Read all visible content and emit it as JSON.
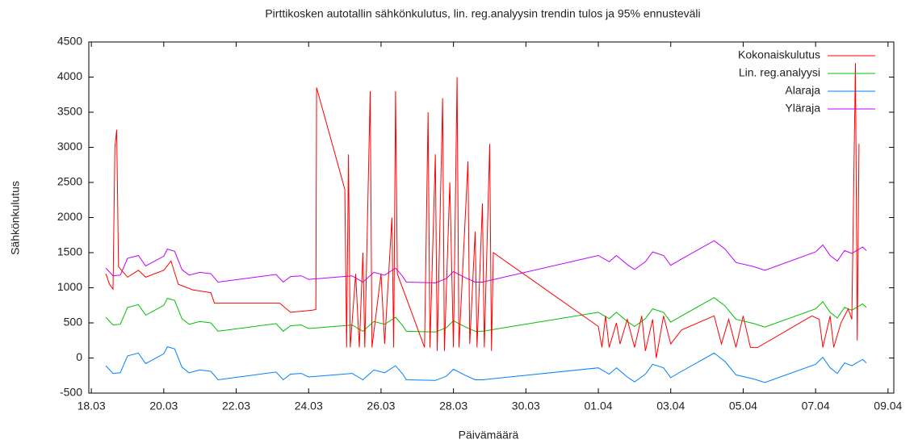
{
  "chart_data": {
    "type": "line",
    "title": "Pirttikosken autotallin sähkönkulutus, lin. reg.analyysin trendin tulos ja 95% ennusteväli",
    "x_label": "Päivämäärä",
    "y_label": "Sähkönkulutus",
    "xlim": [
      17.93,
      40.16
    ],
    "ylim": [
      -500,
      4500
    ],
    "xticks": [
      {
        "value": 18,
        "label": "18.03"
      },
      {
        "value": 20,
        "label": "20.03"
      },
      {
        "value": 22,
        "label": "22.03"
      },
      {
        "value": 24,
        "label": "24.03"
      },
      {
        "value": 26,
        "label": "26.03"
      },
      {
        "value": 28,
        "label": "28.03"
      },
      {
        "value": 30,
        "label": "30.03"
      },
      {
        "value": 32,
        "label": "01.04"
      },
      {
        "value": 34,
        "label": "03.04"
      },
      {
        "value": 36,
        "label": "05.04"
      },
      {
        "value": 38,
        "label": "07.04"
      },
      {
        "value": 40,
        "label": "09.04"
      }
    ],
    "yticks": [
      -500,
      0,
      500,
      1000,
      1500,
      2000,
      2500,
      3000,
      3500,
      4000,
      4500
    ],
    "legend": "top-right",
    "series": [
      {
        "name": "Kokonaiskulutus",
        "color": "#ff0000",
        "x": [
          18.4,
          18.5,
          18.6,
          18.65,
          18.7,
          18.75,
          19.0,
          19.3,
          19.5,
          20.0,
          20.2,
          20.4,
          20.8,
          21.3,
          21.4,
          23.2,
          23.5,
          24.1,
          24.2,
          24.22,
          25.0,
          25.05,
          25.1,
          25.15,
          25.3,
          25.4,
          25.5,
          25.55,
          25.7,
          25.75,
          26.0,
          26.1,
          26.3,
          26.35,
          26.4,
          26.45,
          27.2,
          27.3,
          27.35,
          27.5,
          27.55,
          27.7,
          27.75,
          27.9,
          28.0,
          28.1,
          28.15,
          28.4,
          28.45,
          28.6,
          28.65,
          28.8,
          28.85,
          29.0,
          29.05,
          29.1,
          32.0,
          32.1,
          32.2,
          32.3,
          32.5,
          32.6,
          32.8,
          33.0,
          33.2,
          33.3,
          33.5,
          33.6,
          33.8,
          34.0,
          34.3,
          35.2,
          35.4,
          35.6,
          35.8,
          36.0,
          36.2,
          36.4,
          37.9,
          38.1,
          38.2,
          38.4,
          38.5,
          38.7,
          38.9,
          39.0,
          39.1,
          39.15,
          39.2
        ],
        "values": [
          1200,
          1050,
          980,
          3000,
          3250,
          1300,
          1150,
          1250,
          1150,
          1250,
          1380,
          1050,
          970,
          930,
          780,
          780,
          650,
          680,
          690,
          3850,
          2400,
          150,
          2900,
          150,
          1200,
          150,
          1500,
          150,
          3800,
          150,
          1200,
          200,
          2000,
          150,
          3800,
          1200,
          150,
          3500,
          150,
          2900,
          100,
          3700,
          100,
          2500,
          150,
          4000,
          150,
          2800,
          200,
          1800,
          150,
          2200,
          150,
          3050,
          100,
          1500,
          450,
          150,
          600,
          150,
          500,
          200,
          550,
          150,
          600,
          100,
          550,
          0,
          600,
          200,
          400,
          600,
          200,
          550,
          150,
          600,
          150,
          150,
          600,
          550,
          150,
          600,
          150,
          500,
          700,
          550,
          4200,
          250,
          3050
        ]
      },
      {
        "name": "Lin. reg.analyysi",
        "color": "#00c000",
        "x": [
          18.4,
          18.6,
          18.8,
          19.0,
          19.3,
          19.5,
          20.0,
          20.1,
          20.3,
          20.5,
          20.7,
          21.0,
          21.3,
          21.5,
          23.1,
          23.3,
          23.5,
          23.8,
          24.0,
          25.2,
          25.5,
          25.8,
          26.1,
          26.4,
          26.6,
          26.7,
          27.5,
          27.8,
          28.0,
          28.3,
          28.6,
          28.8,
          32.0,
          32.3,
          32.5,
          32.8,
          33.0,
          33.3,
          33.5,
          33.8,
          34.0,
          34.3,
          35.2,
          35.5,
          35.8,
          36.3,
          36.6,
          38.0,
          38.2,
          38.4,
          38.6,
          38.8,
          39.0,
          39.3,
          39.4
        ],
        "values": [
          580,
          470,
          480,
          720,
          760,
          610,
          750,
          850,
          820,
          560,
          480,
          520,
          500,
          380,
          490,
          380,
          460,
          470,
          420,
          470,
          380,
          520,
          480,
          580,
          460,
          380,
          370,
          430,
          530,
          450,
          380,
          380,
          650,
          560,
          650,
          520,
          450,
          560,
          700,
          650,
          510,
          600,
          860,
          740,
          550,
          490,
          440,
          700,
          800,
          650,
          570,
          720,
          680,
          770,
          720
        ]
      },
      {
        "name": "Alaraja",
        "color": "#0080ff",
        "x": [
          18.4,
          18.6,
          18.8,
          19.0,
          19.3,
          19.5,
          20.0,
          20.1,
          20.3,
          20.5,
          20.7,
          21.0,
          21.3,
          21.5,
          23.1,
          23.3,
          23.5,
          23.8,
          24.0,
          25.2,
          25.5,
          25.8,
          26.1,
          26.4,
          26.6,
          26.7,
          27.5,
          27.8,
          28.0,
          28.3,
          28.6,
          28.8,
          32.0,
          32.3,
          32.5,
          32.8,
          33.0,
          33.3,
          33.5,
          33.8,
          34.0,
          34.3,
          35.2,
          35.5,
          35.8,
          36.3,
          36.6,
          38.0,
          38.2,
          38.4,
          38.6,
          38.8,
          39.0,
          39.3,
          39.4
        ],
        "values": [
          -110,
          -220,
          -210,
          30,
          70,
          -80,
          60,
          160,
          130,
          -130,
          -210,
          -170,
          -190,
          -310,
          -200,
          -310,
          -230,
          -220,
          -270,
          -220,
          -310,
          -170,
          -210,
          -110,
          -230,
          -310,
          -320,
          -260,
          -160,
          -240,
          -310,
          -310,
          -140,
          -230,
          -140,
          -270,
          -340,
          -230,
          -90,
          -140,
          -280,
          -190,
          70,
          -50,
          -240,
          -300,
          -350,
          -90,
          10,
          -140,
          -220,
          -70,
          -110,
          -20,
          -70
        ]
      },
      {
        "name": "Yläraja",
        "color": "#c000ff",
        "x": [
          18.4,
          18.6,
          18.8,
          19.0,
          19.3,
          19.5,
          20.0,
          20.1,
          20.3,
          20.5,
          20.7,
          21.0,
          21.3,
          21.5,
          23.1,
          23.3,
          23.5,
          23.8,
          24.0,
          25.2,
          25.5,
          25.8,
          26.1,
          26.4,
          26.6,
          26.7,
          27.5,
          27.8,
          28.0,
          28.3,
          28.6,
          28.8,
          32.0,
          32.3,
          32.5,
          32.8,
          33.0,
          33.3,
          33.5,
          33.8,
          34.0,
          34.3,
          35.2,
          35.5,
          35.8,
          36.3,
          36.6,
          38.0,
          38.2,
          38.4,
          38.6,
          38.8,
          39.0,
          39.3,
          39.4
        ],
        "values": [
          1280,
          1170,
          1180,
          1420,
          1460,
          1310,
          1450,
          1550,
          1520,
          1260,
          1180,
          1220,
          1200,
          1080,
          1190,
          1080,
          1160,
          1170,
          1120,
          1170,
          1080,
          1220,
          1180,
          1280,
          1160,
          1080,
          1070,
          1130,
          1230,
          1150,
          1080,
          1080,
          1460,
          1370,
          1460,
          1330,
          1260,
          1370,
          1510,
          1460,
          1320,
          1410,
          1670,
          1550,
          1360,
          1300,
          1250,
          1510,
          1610,
          1460,
          1380,
          1530,
          1490,
          1580,
          1530
        ]
      }
    ]
  }
}
